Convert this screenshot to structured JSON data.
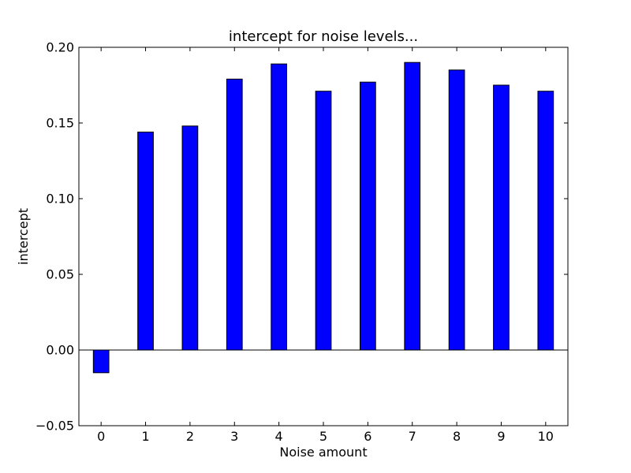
{
  "chart_data": {
    "type": "bar",
    "title": "intercept for noise levels...",
    "xlabel": "Noise amount",
    "ylabel": "intercept",
    "categories": [
      "0",
      "1",
      "2",
      "3",
      "4",
      "5",
      "6",
      "7",
      "8",
      "9",
      "10"
    ],
    "values": [
      -0.015,
      0.144,
      0.148,
      0.179,
      0.189,
      0.171,
      0.177,
      0.19,
      0.185,
      0.175,
      0.171
    ],
    "ylim": [
      -0.05,
      0.2
    ],
    "yticks": [
      -0.05,
      0.0,
      0.05,
      0.1,
      0.15,
      0.2
    ],
    "ytick_labels": [
      "−0.05",
      "0.00",
      "0.05",
      "0.10",
      "0.15",
      "0.20"
    ],
    "bar_color": "#0000ff",
    "grid": false,
    "legend": "none"
  }
}
